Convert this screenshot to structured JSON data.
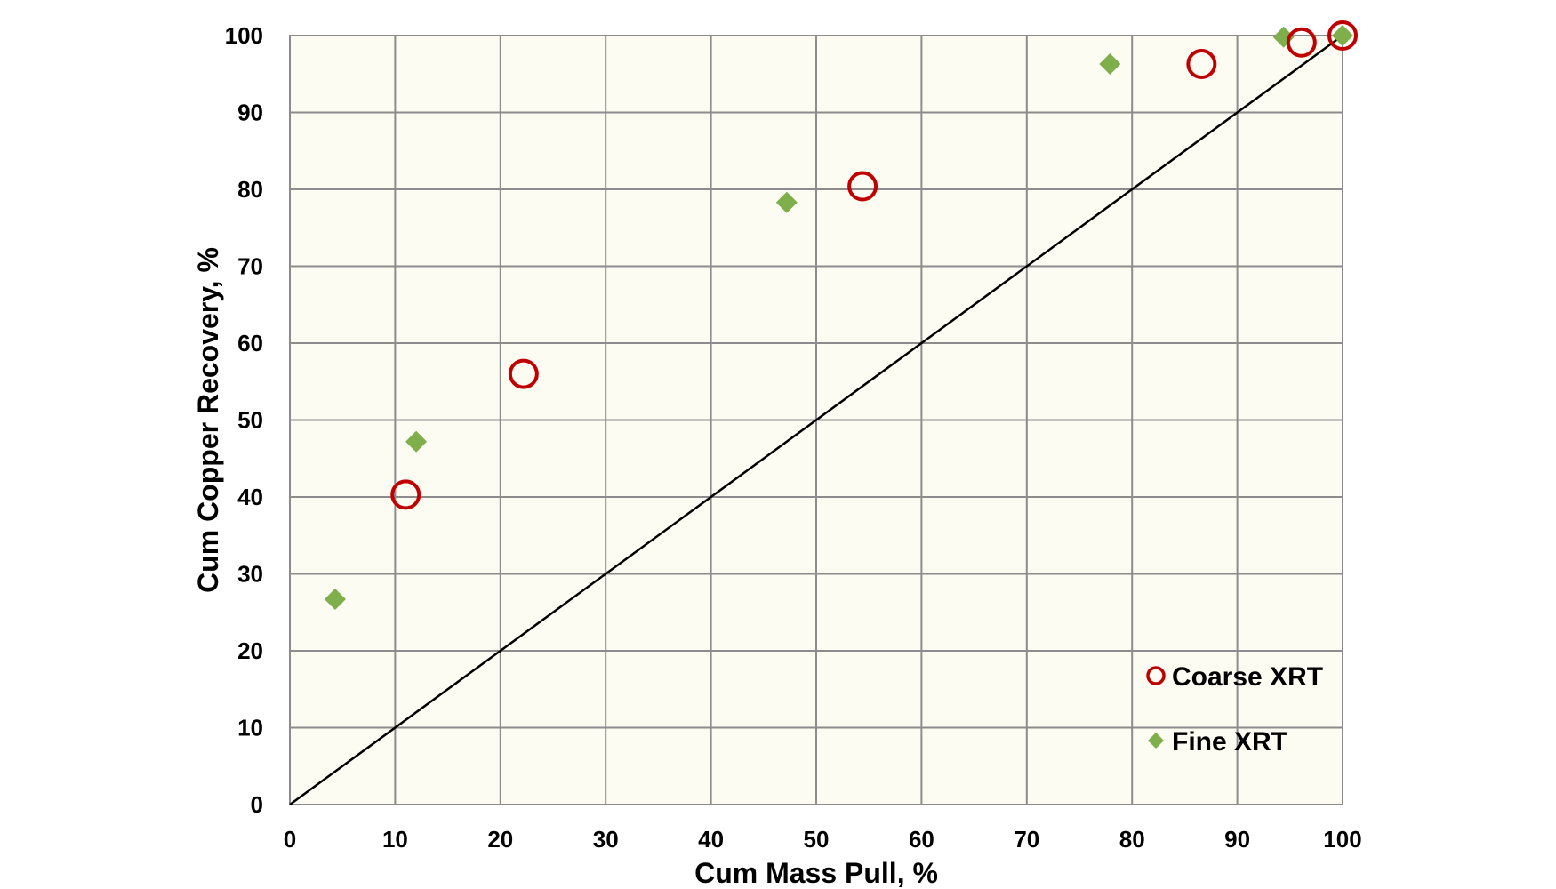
{
  "chart_data": {
    "type": "scatter",
    "title": "",
    "xlabel": "Cum Mass Pull, %",
    "ylabel": "Cum Copper Recovery, %",
    "xlim": [
      0,
      100
    ],
    "ylim": [
      0,
      100
    ],
    "xticks": [
      "0",
      "10",
      "20",
      "30",
      "40",
      "50",
      "60",
      "70",
      "80",
      "90",
      "100"
    ],
    "yticks": [
      "0",
      "10",
      "20",
      "30",
      "40",
      "50",
      "60",
      "70",
      "80",
      "90",
      "100"
    ],
    "grid": true,
    "legend_position": "bottom-right",
    "reference_line": {
      "type": "diagonal",
      "from": [
        0,
        0
      ],
      "to": [
        100,
        100
      ],
      "color": "#000000"
    },
    "series": [
      {
        "name": "Coarse XRT",
        "marker": "hollow-circle",
        "color": "#c00000",
        "points": [
          {
            "x": 11,
            "y": 40.3
          },
          {
            "x": 22.2,
            "y": 56
          },
          {
            "x": 54.4,
            "y": 80.4
          },
          {
            "x": 86.6,
            "y": 96.3
          },
          {
            "x": 96.1,
            "y": 99.1
          },
          {
            "x": 100,
            "y": 100
          }
        ]
      },
      {
        "name": "Fine XRT",
        "marker": "diamond",
        "color": "#7faf4a",
        "points": [
          {
            "x": 4.3,
            "y": 26.7
          },
          {
            "x": 12,
            "y": 47.2
          },
          {
            "x": 47.2,
            "y": 78.3
          },
          {
            "x": 77.9,
            "y": 96.3
          },
          {
            "x": 94.4,
            "y": 99.8
          },
          {
            "x": 100,
            "y": 100
          }
        ]
      }
    ],
    "plot_background": "#fcfcf2",
    "grid_color": "#8c8c8c"
  }
}
